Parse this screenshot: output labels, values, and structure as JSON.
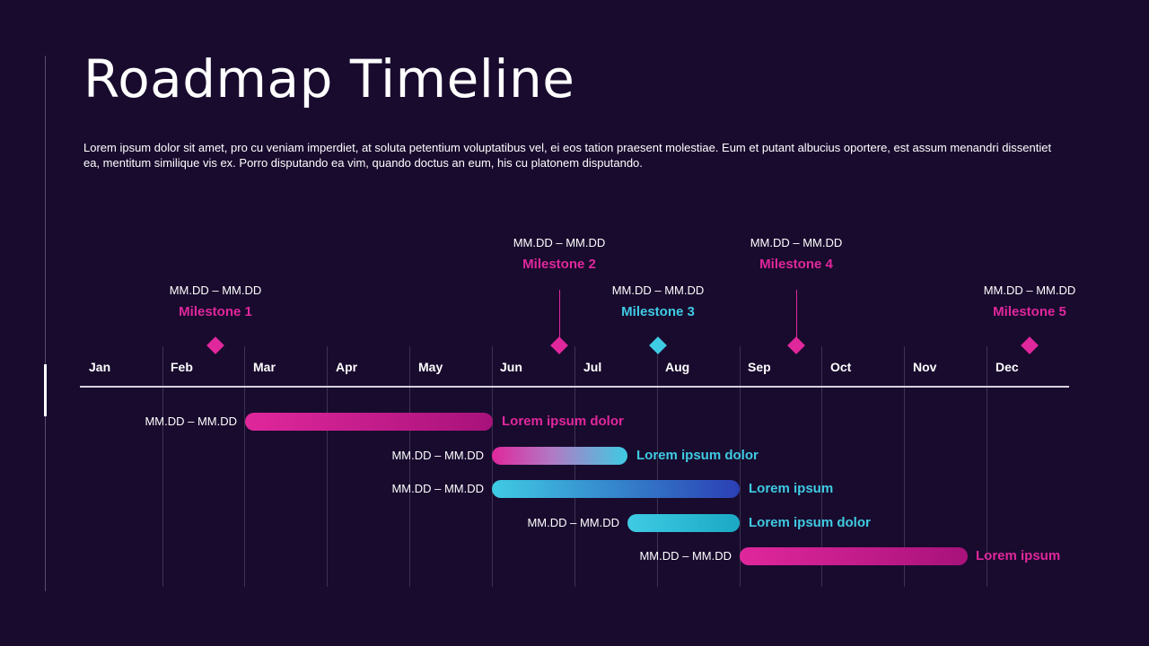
{
  "title": "Roadmap Timeline",
  "description": "Lorem ipsum dolor sit amet, pro cu veniam imperdiet, at soluta petentium voluptatibus vel, ei eos tation praesent molestiae. Eum et putant albucius oportere, est assum menandri dissentiet ea, mentitum similique vis ex. Porro disputando ea vim, quando doctus an eum, his cu platonem disputando.",
  "colors": {
    "background": "#190b2e",
    "magenta": "#e0279c",
    "cyan": "#3fcbe3",
    "blue": "#2b3fb5"
  },
  "timeline": {
    "months": [
      "Jan",
      "Feb",
      "Mar",
      "Apr",
      "May",
      "Jun",
      "Jul",
      "Aug",
      "Sep",
      "Oct",
      "Nov",
      "Dec"
    ],
    "milestones": [
      {
        "date": "MM.DD – MM.DD",
        "label": "Milestone 1",
        "color": "magenta"
      },
      {
        "date": "MM.DD – MM.DD",
        "label": "Milestone 2",
        "color": "magenta"
      },
      {
        "date": "MM.DD – MM.DD",
        "label": "Milestone 3",
        "color": "cyan"
      },
      {
        "date": "MM.DD – MM.DD",
        "label": "Milestone 4",
        "color": "magenta"
      },
      {
        "date": "MM.DD – MM.DD",
        "label": "Milestone 5",
        "color": "magenta"
      }
    ],
    "bars": [
      {
        "date": "MM.DD – MM.DD",
        "label": "Lorem ipsum dolor",
        "label_color": "magenta",
        "start_month": "Mar",
        "end_month": "May"
      },
      {
        "date": "MM.DD – MM.DD",
        "label": "Lorem ipsum dolor",
        "label_color": "cyan",
        "start_month": "Jun",
        "end_month": "Jul"
      },
      {
        "date": "MM.DD – MM.DD",
        "label": "Lorem ipsum",
        "label_color": "cyan",
        "start_month": "Jun",
        "end_month": "Aug"
      },
      {
        "date": "MM.DD – MM.DD",
        "label": "Lorem ipsum dolor",
        "label_color": "cyan",
        "start_month": "Jul",
        "end_month": "Aug"
      },
      {
        "date": "MM.DD – MM.DD",
        "label": "Lorem ipsum",
        "label_color": "magenta",
        "start_month": "Sep",
        "end_month": "Nov"
      }
    ]
  }
}
